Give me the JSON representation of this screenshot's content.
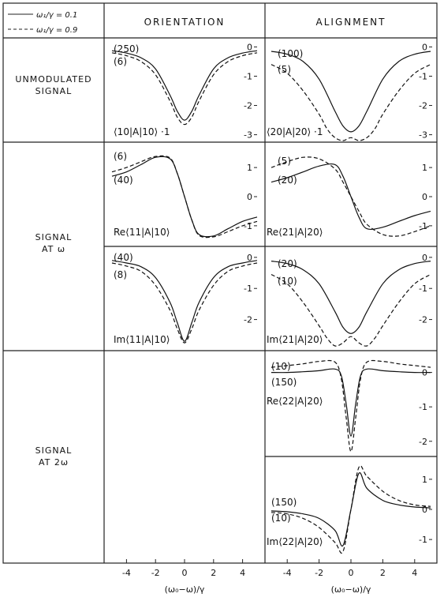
{
  "legend": [
    {
      "label": "ω₁/γ = 0.1",
      "style": "solid"
    },
    {
      "label": "ω₁/γ = 0.9",
      "style": "dashed"
    }
  ],
  "columns": [
    "ORIENTATION",
    "ALIGNMENT"
  ],
  "rows": [
    {
      "label_lines": [
        "UNMODULATED",
        "SIGNAL"
      ]
    },
    {
      "label_lines": [
        "SIGNAL",
        "AT ω"
      ]
    },
    {
      "label_lines": [
        "SIGNAL",
        "AT 2ω"
      ]
    }
  ],
  "xaxis": {
    "label": "(ω₀−ω)/γ",
    "ticks": [
      "-4",
      "-2",
      "0",
      "2",
      "4"
    ]
  },
  "chart_data": [
    {
      "id": "p1",
      "type": "line",
      "title": "⟨10|A|10⟩ ·1",
      "xlim": [
        -5,
        5
      ],
      "ylim": [
        -3.2,
        0.2
      ],
      "yticks": [
        "0",
        "-1",
        "-2",
        "-3"
      ],
      "series_labels": [
        "(250)",
        "(6)"
      ],
      "series": [
        {
          "name": "ω₁/γ = 0.1",
          "x": [
            -5,
            -4,
            -3,
            -2,
            -1,
            -0.5,
            0,
            0.5,
            1,
            2,
            3,
            4,
            5
          ],
          "y": [
            -0.13,
            -0.21,
            -0.37,
            -0.75,
            -1.65,
            -2.2,
            -2.5,
            -2.2,
            -1.65,
            -0.75,
            -0.37,
            -0.21,
            -0.13
          ]
        },
        {
          "name": "ω₁/γ = 0.9",
          "x": [
            -5,
            -4,
            -3,
            -2,
            -1,
            -0.5,
            0,
            0.5,
            1,
            2,
            3,
            4,
            5
          ],
          "y": [
            -0.2,
            -0.3,
            -0.5,
            -0.95,
            -1.85,
            -2.4,
            -2.65,
            -2.4,
            -1.85,
            -0.95,
            -0.5,
            -0.3,
            -0.2
          ]
        }
      ]
    },
    {
      "id": "p2",
      "type": "line",
      "title": "⟨20|A|20⟩ ·1",
      "xlim": [
        -5,
        5
      ],
      "ylim": [
        -3.2,
        0.2
      ],
      "yticks": [
        "0",
        "-1",
        "-2",
        "-3"
      ],
      "series_labels": [
        "(100)",
        "(5)"
      ],
      "series": [
        {
          "name": "ω₁/γ = 0.1",
          "x": [
            -5,
            -4,
            -3,
            -2,
            -1,
            -0.5,
            0,
            0.5,
            1,
            2,
            3,
            4,
            5
          ],
          "y": [
            -0.15,
            -0.25,
            -0.5,
            -1.1,
            -2.2,
            -2.7,
            -2.9,
            -2.7,
            -2.2,
            -1.1,
            -0.5,
            -0.25,
            -0.15
          ]
        },
        {
          "name": "ω₁/γ = 0.9",
          "x": [
            -5,
            -4,
            -3,
            -2,
            -1.5,
            -1,
            -0.5,
            0,
            0.5,
            1,
            1.5,
            2,
            3,
            4,
            5
          ],
          "y": [
            -0.6,
            -0.9,
            -1.5,
            -2.3,
            -2.8,
            -3.1,
            -3.2,
            -3.1,
            -3.2,
            -3.1,
            -2.8,
            -2.3,
            -1.5,
            -0.9,
            -0.6
          ]
        }
      ]
    },
    {
      "id": "p3",
      "type": "line",
      "title": "Re⟨11|A|10⟩",
      "xlim": [
        -5,
        5
      ],
      "ylim": [
        -1.6,
        1.6
      ],
      "yticks": [
        "1",
        "0",
        "-1"
      ],
      "series_labels": [
        "(6)",
        "(40)"
      ],
      "series": [
        {
          "name": "ω₁/γ = 0.1",
          "x": [
            -5,
            -4,
            -3,
            -2,
            -1,
            -0.5,
            0,
            0.5,
            1,
            2,
            3,
            4,
            5
          ],
          "y": [
            0.7,
            0.85,
            1.1,
            1.35,
            1.3,
            0.8,
            0,
            -0.8,
            -1.3,
            -1.35,
            -1.1,
            -0.85,
            -0.7
          ]
        },
        {
          "name": "ω₁/γ = 0.9",
          "x": [
            -5,
            -4,
            -3,
            -2,
            -1,
            -0.5,
            0,
            0.5,
            1,
            2,
            3,
            4,
            5
          ],
          "y": [
            0.85,
            1.0,
            1.2,
            1.38,
            1.33,
            0.8,
            0,
            -0.8,
            -1.33,
            -1.38,
            -1.2,
            -1.0,
            -0.85
          ]
        }
      ]
    },
    {
      "id": "p4",
      "type": "line",
      "title": "Re⟨21|A|20⟩",
      "xlim": [
        -5,
        5
      ],
      "ylim": [
        -1.6,
        1.6
      ],
      "yticks": [
        "1",
        "0",
        "-1"
      ],
      "series_labels": [
        "(5)",
        "(20)"
      ],
      "series": [
        {
          "name": "ω₁/γ = 0.1",
          "x": [
            -5,
            -4,
            -3,
            -2,
            -1,
            -0.5,
            0,
            0.5,
            1,
            2,
            3,
            4,
            5
          ],
          "y": [
            0.5,
            0.65,
            0.85,
            1.05,
            1.1,
            0.7,
            0,
            -0.7,
            -1.1,
            -1.05,
            -0.85,
            -0.65,
            -0.5
          ]
        },
        {
          "name": "ω₁/γ = 0.9",
          "x": [
            -5,
            -4,
            -3,
            -2,
            -1,
            -0.5,
            0,
            0.5,
            1,
            2,
            3,
            4,
            5
          ],
          "y": [
            1.0,
            1.2,
            1.35,
            1.3,
            0.95,
            0.5,
            0,
            -0.5,
            -0.95,
            -1.3,
            -1.35,
            -1.2,
            -1.0
          ]
        }
      ]
    },
    {
      "id": "p5",
      "type": "line",
      "title": "Im⟨11|A|10⟩",
      "xlim": [
        -5,
        5
      ],
      "ylim": [
        -2.9,
        0.2
      ],
      "yticks": [
        "0",
        "-1",
        "-2"
      ],
      "series_labels": [
        "(40)",
        "(8)"
      ],
      "series": [
        {
          "name": "ω₁/γ = 0.1",
          "x": [
            -5,
            -4,
            -3,
            -2,
            -1,
            -0.5,
            0,
            0.5,
            1,
            2,
            3,
            4,
            5
          ],
          "y": [
            -0.1,
            -0.18,
            -0.3,
            -0.65,
            -1.45,
            -2.1,
            -2.7,
            -2.1,
            -1.45,
            -0.65,
            -0.3,
            -0.18,
            -0.1
          ]
        },
        {
          "name": "ω₁/γ = 0.9",
          "x": [
            -5,
            -4,
            -3,
            -2,
            -1,
            -0.5,
            0,
            0.5,
            1,
            2,
            3,
            4,
            5
          ],
          "y": [
            -0.18,
            -0.28,
            -0.45,
            -0.9,
            -1.7,
            -2.3,
            -2.75,
            -2.3,
            -1.7,
            -0.9,
            -0.45,
            -0.28,
            -0.18
          ]
        }
      ]
    },
    {
      "id": "p6",
      "type": "line",
      "title": "Im⟨21|A|20⟩",
      "xlim": [
        -5,
        5
      ],
      "ylim": [
        -2.9,
        0.2
      ],
      "yticks": [
        "0",
        "-1",
        "-2"
      ],
      "series_labels": [
        "(20)",
        "(10)"
      ],
      "series": [
        {
          "name": "ω₁/γ = 0.1",
          "x": [
            -5,
            -4,
            -3,
            -2,
            -1,
            -0.5,
            0,
            0.5,
            1,
            2,
            3,
            4,
            5
          ],
          "y": [
            -0.12,
            -0.2,
            -0.4,
            -0.85,
            -1.75,
            -2.25,
            -2.45,
            -2.25,
            -1.75,
            -0.85,
            -0.4,
            -0.2,
            -0.12
          ]
        },
        {
          "name": "ω₁/γ = 0.9",
          "x": [
            -5,
            -4,
            -3,
            -2,
            -1.5,
            -1,
            -0.5,
            0,
            0.5,
            1,
            1.5,
            2,
            3,
            4,
            5
          ],
          "y": [
            -0.55,
            -0.85,
            -1.45,
            -2.2,
            -2.6,
            -2.85,
            -2.75,
            -2.55,
            -2.75,
            -2.85,
            -2.6,
            -2.2,
            -1.45,
            -0.85,
            -0.55
          ]
        }
      ]
    },
    {
      "id": "p7",
      "type": "line",
      "title": "Re⟨22|A|20⟩",
      "xlim": [
        -5,
        5
      ],
      "ylim": [
        -2.35,
        0.45
      ],
      "yticks": [
        "0",
        "-1",
        "-2"
      ],
      "series_labels": [
        "(10)",
        "(150)"
      ],
      "series": [
        {
          "name": "ω₁/γ = 0.1",
          "x": [
            -5,
            -4,
            -3,
            -2,
            -1,
            -0.6,
            -0.3,
            0,
            0.3,
            0.6,
            1,
            2,
            3,
            4,
            5
          ],
          "y": [
            0.0,
            0.0,
            0.02,
            0.05,
            0.1,
            -0.1,
            -0.9,
            -1.85,
            -0.9,
            -0.1,
            0.1,
            0.05,
            0.02,
            0.0,
            0.0
          ]
        },
        {
          "name": "ω₁/γ = 0.9",
          "x": [
            -5,
            -4,
            -3,
            -2,
            -1,
            -0.6,
            -0.3,
            0,
            0.3,
            0.6,
            1,
            2,
            3,
            4,
            5
          ],
          "y": [
            0.15,
            0.2,
            0.25,
            0.32,
            0.3,
            -0.2,
            -1.3,
            -2.3,
            -1.3,
            -0.2,
            0.3,
            0.32,
            0.25,
            0.2,
            0.15
          ]
        }
      ]
    },
    {
      "id": "p8",
      "type": "line",
      "title": "Im⟨22|A|20⟩",
      "xlim": [
        -5,
        5
      ],
      "ylim": [
        -1.6,
        1.6
      ],
      "yticks": [
        "1",
        "0",
        "-1"
      ],
      "series_labels": [
        "(150)",
        "(10)"
      ],
      "series": [
        {
          "name": "ω₁/γ = 0.1",
          "x": [
            -5,
            -4,
            -3,
            -2,
            -1,
            -0.5,
            0,
            0.5,
            1,
            2,
            3,
            4,
            5
          ],
          "y": [
            -0.05,
            -0.08,
            -0.15,
            -0.3,
            -0.7,
            -1.2,
            0.0,
            1.2,
            0.7,
            0.3,
            0.15,
            0.08,
            0.05
          ]
        },
        {
          "name": "ω₁/γ = 0.9",
          "x": [
            -5,
            -4,
            -3,
            -2,
            -1,
            -0.5,
            0,
            0.5,
            1,
            2,
            3,
            4,
            5
          ],
          "y": [
            -0.1,
            -0.15,
            -0.3,
            -0.6,
            -1.1,
            -1.4,
            0.0,
            1.4,
            1.1,
            0.6,
            0.3,
            0.15,
            0.1
          ]
        }
      ]
    }
  ]
}
